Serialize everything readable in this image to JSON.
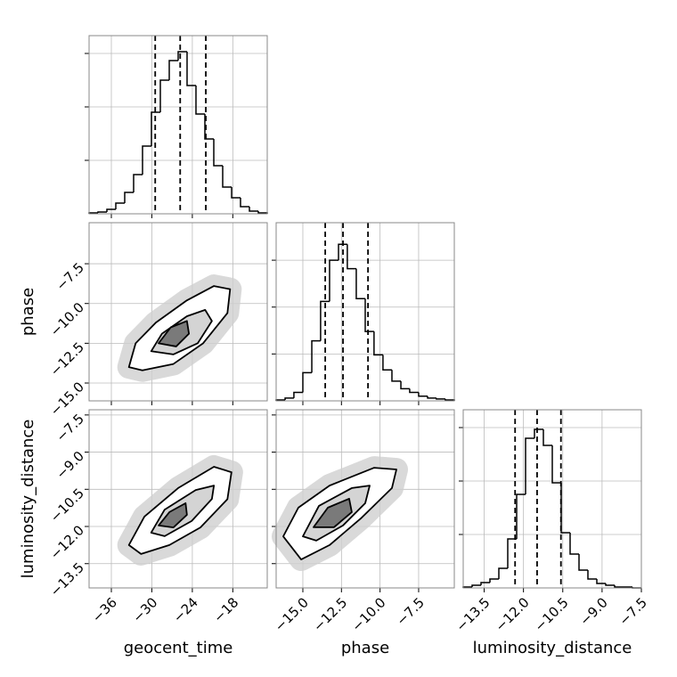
{
  "chart_data": [
    {
      "type": "histogram",
      "color": "#000000",
      "bins": [
        -39.3,
        -37.98,
        -36.66,
        -35.34,
        -34.02,
        -32.7,
        -31.38,
        -30.06,
        -28.74,
        -27.42,
        -26.1,
        -24.78,
        -23.46,
        -22.14,
        -20.82,
        -19.5,
        -18.18,
        -16.86,
        -15.54,
        -14.22,
        -12.9
      ],
      "counts": [
        1,
        2,
        5,
        12,
        24,
        44,
        76,
        114,
        150,
        172,
        182,
        144,
        112,
        84,
        54,
        30,
        18,
        8,
        3,
        1
      ],
      "quantiles": [
        -29.5,
        -25.8,
        -22.0
      ],
      "xlim": [
        -39.3,
        -12.9
      ],
      "xticks": [
        -36,
        -30,
        -24,
        -18
      ],
      "ylim": [
        0,
        200
      ],
      "yticks": [
        60,
        120,
        180
      ],
      "grid": true
    },
    {
      "type": "contour",
      "ylabel": "phase",
      "contours": [
        {
          "x": [
            -33.4,
            -32.4,
            -29.4,
            -24.8,
            -20.8,
            -18.4,
            -18.8,
            -22.4,
            -26.8,
            -31.4
          ],
          "y": [
            -14.0,
            -12.5,
            -11.2,
            -9.8,
            -8.9,
            -9.1,
            -10.6,
            -12.5,
            -13.8,
            -14.2
          ]
        },
        {
          "x": [
            -30.1,
            -28.5,
            -24.8,
            -22.1,
            -21.1,
            -23.2,
            -26.8
          ],
          "y": [
            -13.0,
            -11.9,
            -10.8,
            -10.4,
            -11.1,
            -12.5,
            -13.2
          ]
        },
        {
          "x": [
            -29.0,
            -27.2,
            -24.8,
            -24.5,
            -26.4
          ],
          "y": [
            -12.5,
            -11.5,
            -11.1,
            -11.9,
            -12.7
          ]
        }
      ],
      "xlim": [
        -39.3,
        -12.9
      ],
      "xticks": [
        -36,
        -30,
        -24,
        -18
      ],
      "ylim": [
        -16.12,
        -4.92
      ],
      "yticks": [
        {
          "value": -15.0,
          "label": "−15.0"
        },
        {
          "value": -12.5,
          "label": "−12.5"
        },
        {
          "value": -10.0,
          "label": "−10.0"
        },
        {
          "value": -7.5,
          "label": "−7.5"
        }
      ],
      "grid": true
    },
    {
      "type": "contour",
      "xlabel": "geocent_time",
      "ylabel": "luminosity_distance",
      "contours": [
        {
          "x": [
            -33.4,
            -31.1,
            -26.1,
            -20.8,
            -18.2,
            -18.8,
            -22.8,
            -27.4,
            -31.6
          ],
          "y": [
            -12.75,
            -11.6,
            -10.45,
            -9.59,
            -9.81,
            -10.9,
            -12.04,
            -12.75,
            -13.11
          ]
        },
        {
          "x": [
            -30.1,
            -28.1,
            -23.5,
            -20.8,
            -21.1,
            -24.1,
            -28.1
          ],
          "y": [
            -12.25,
            -11.32,
            -10.53,
            -10.35,
            -10.89,
            -11.78,
            -12.39
          ]
        },
        {
          "x": [
            -29.0,
            -27.4,
            -25.0,
            -24.8,
            -26.8
          ],
          "y": [
            -11.96,
            -11.42,
            -11.06,
            -11.53,
            -12.04
          ]
        }
      ],
      "xlim": [
        -39.3,
        -12.9
      ],
      "xticks": [
        {
          "value": -36,
          "label": "−36"
        },
        {
          "value": -30,
          "label": "−30"
        },
        {
          "value": -24,
          "label": "−24"
        },
        {
          "value": -18,
          "label": "−18"
        }
      ],
      "ylim": [
        -14.48,
        -7.29
      ],
      "yticks": [
        {
          "value": -13.5,
          "label": "−13.5"
        },
        {
          "value": -12.0,
          "label": "−12.0"
        },
        {
          "value": -10.5,
          "label": "−10.5"
        },
        {
          "value": -9.0,
          "label": "−9.0"
        },
        {
          "value": -7.5,
          "label": "−7.5"
        }
      ],
      "grid": true
    },
    {
      "type": "histogram",
      "color": "#000000",
      "bins": [
        -16.73,
        -16.15,
        -15.58,
        -15.0,
        -14.42,
        -13.85,
        -13.27,
        -12.69,
        -12.12,
        -11.54,
        -10.96,
        -10.39,
        -9.81,
        -9.23,
        -8.65,
        -8.08,
        -7.5,
        -6.92,
        -6.35,
        -5.77,
        -5.19
      ],
      "counts": [
        1,
        3,
        9,
        30,
        64,
        106,
        150,
        167,
        141,
        109,
        74,
        49,
        33,
        21,
        13,
        9,
        5,
        3,
        2,
        1
      ],
      "quantiles": [
        -13.55,
        -12.4,
        -10.78
      ],
      "xlim": [
        -16.73,
        -5.19
      ],
      "xticks": [
        -15.0,
        -12.5,
        -10.0,
        -7.5
      ],
      "ylim": [
        0,
        190
      ],
      "yticks": [
        50,
        100,
        150
      ],
      "grid": true
    },
    {
      "type": "contour",
      "xlabel": "phase",
      "contours": [
        {
          "x": [
            -16.27,
            -15.29,
            -13.27,
            -10.38,
            -8.94,
            -9.23,
            -11.25,
            -13.27,
            -15.11
          ],
          "y": [
            -12.4,
            -11.24,
            -10.35,
            -9.63,
            -9.7,
            -10.45,
            -11.68,
            -12.75,
            -13.33
          ]
        },
        {
          "x": [
            -15.0,
            -13.96,
            -11.83,
            -10.67,
            -10.96,
            -12.4,
            -14.13
          ],
          "y": [
            -12.4,
            -11.17,
            -10.45,
            -10.35,
            -11.06,
            -11.96,
            -12.57
          ]
        },
        {
          "x": [
            -14.31,
            -13.38,
            -12.0,
            -11.83,
            -12.98
          ],
          "y": [
            -12.03,
            -11.24,
            -10.88,
            -11.42,
            -12.03
          ]
        }
      ],
      "xlim": [
        -16.73,
        -5.19
      ],
      "xticks": [
        {
          "value": -15.0,
          "label": "−15.0"
        },
        {
          "value": -12.5,
          "label": "−12.5"
        },
        {
          "value": -10.0,
          "label": "−10.0"
        },
        {
          "value": -7.5,
          "label": "−7.5"
        }
      ],
      "ylim": [
        -14.48,
        -7.29
      ],
      "yticks": [
        -13.5,
        -12.0,
        -10.5,
        -9.0,
        -7.5
      ],
      "grid": true
    },
    {
      "type": "histogram",
      "color": "#000000",
      "xlabel": "luminosity_distance",
      "bins": [
        -14.3,
        -13.96,
        -13.62,
        -13.28,
        -12.94,
        -12.6,
        -12.26,
        -11.92,
        -11.58,
        -11.24,
        -10.9,
        -10.56,
        -10.22,
        -9.88,
        -9.54,
        -9.2,
        -8.86,
        -8.52,
        -8.18,
        -7.84,
        -7.5
      ],
      "counts": [
        1,
        3,
        6,
        10,
        22,
        55,
        105,
        168,
        178,
        160,
        118,
        62,
        38,
        20,
        10,
        5,
        3,
        1,
        1,
        0
      ],
      "quantiles": [
        -12.32,
        -11.48,
        -10.57
      ],
      "xlim": [
        -14.3,
        -7.5
      ],
      "xticks": [
        {
          "value": -13.5,
          "label": "−13.5"
        },
        {
          "value": -12.0,
          "label": "−12.0"
        },
        {
          "value": -10.5,
          "label": "−10.5"
        },
        {
          "value": -9.0,
          "label": "−9.0"
        },
        {
          "value": -7.5,
          "label": "−7.5"
        }
      ],
      "ylim": [
        0,
        200
      ],
      "yticks": [
        60,
        120,
        180
      ],
      "grid": true
    }
  ]
}
